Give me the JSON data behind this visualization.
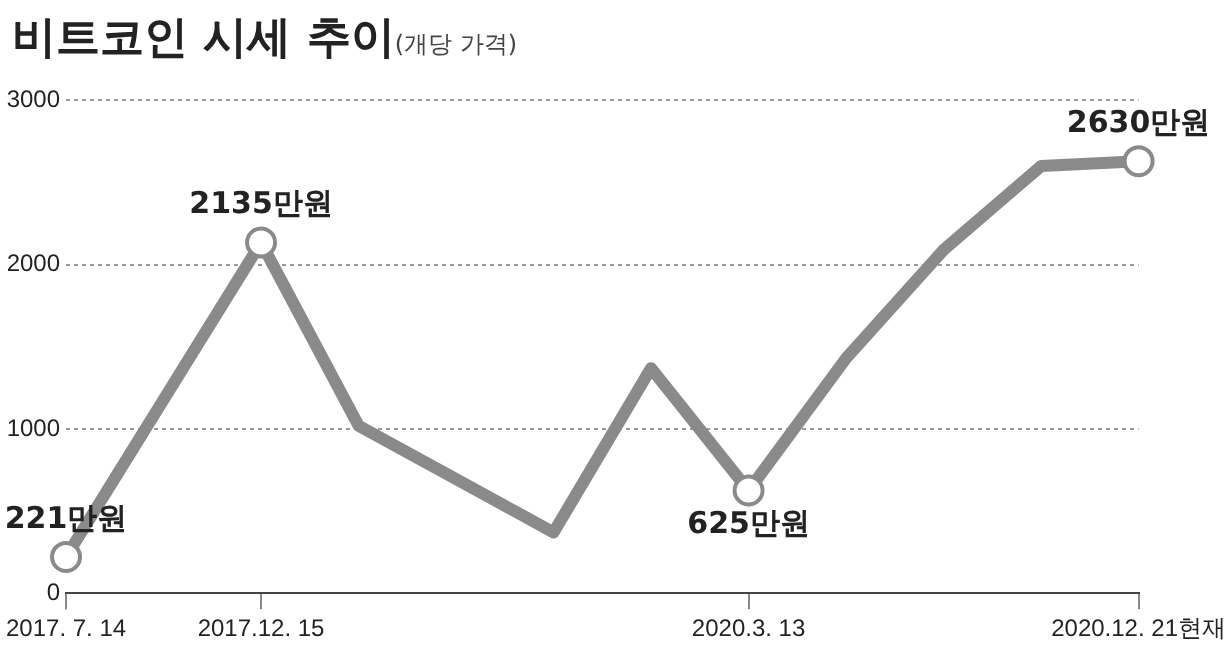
{
  "chart_data": {
    "type": "line",
    "title": "비트코인 시세 추이",
    "subtitle": "(개당 가격)",
    "categories": [
      "2017. 7. 14",
      null,
      "2017.12. 15",
      null,
      null,
      null,
      null,
      "2020.3. 13",
      null,
      null,
      null,
      "2020.12. 21현재"
    ],
    "series": [
      {
        "color": "#8a8a8a",
        "values": [
          221,
          null,
          2135,
          1020,
          null,
          370,
          1370,
          625,
          1430,
          2090,
          2600,
          2630
        ],
        "value_labels": [
          "221만원",
          null,
          "2135만원",
          null,
          null,
          null,
          null,
          "625만원",
          null,
          null,
          null,
          "2630만원"
        ]
      }
    ],
    "ylim": [
      0,
      3000
    ],
    "yticks": [
      0,
      1000,
      2000,
      3000
    ],
    "grid": "y",
    "legend": false
  }
}
